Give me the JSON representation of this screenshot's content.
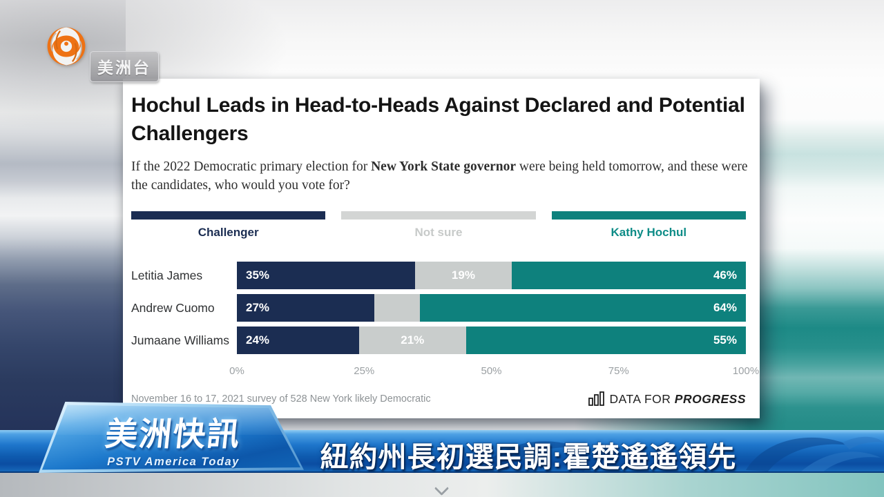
{
  "branding": {
    "channel_badge": "美洲台",
    "program_badge_title": "美洲快訊",
    "program_badge_subtitle": "PSTV America Today"
  },
  "headline": "紐約州長初選民調:霍楚遙遙領先",
  "chart_card": {
    "title": "Hochul Leads in Head-to-Heads Against Declared and Potential Challengers",
    "subtitle_prefix": "If the 2022 Democratic primary election for ",
    "subtitle_bold": "New York State governor",
    "subtitle_suffix": " were being held tomorrow, and these were the candidates, who would you vote for?",
    "footnote": "November 16 to 17, 2021 survey of 528 New York likely Democratic",
    "logo_regular": "DATA FOR",
    "logo_bold": "PROGRESS"
  },
  "chart_data": {
    "type": "bar",
    "stacked": true,
    "orientation": "horizontal",
    "title": "Hochul Leads in Head-to-Heads Against Declared and Potential Challengers",
    "xlabel": "",
    "ylabel": "",
    "xlim": [
      0,
      100
    ],
    "x_ticks": [
      "0%",
      "25%",
      "50%",
      "75%",
      "100%"
    ],
    "grid": false,
    "legend_position": "top",
    "legend": [
      {
        "label": "Challenger",
        "color": "#1b2d52"
      },
      {
        "label": "Not sure",
        "color": "#c9cdcc"
      },
      {
        "label": "Kathy Hochul",
        "color": "#0e817d"
      }
    ],
    "categories": [
      "Letitia James",
      "Andrew Cuomo",
      "Jumaane Williams"
    ],
    "series": [
      {
        "name": "Challenger",
        "values": [
          35,
          27,
          24
        ]
      },
      {
        "name": "Not sure",
        "values": [
          19,
          9,
          21
        ]
      },
      {
        "name": "Kathy Hochul",
        "values": [
          46,
          64,
          55
        ]
      }
    ],
    "bar_labels": {
      "challenger": [
        "35%",
        "27%",
        "24%"
      ],
      "not_sure": [
        "19%",
        "",
        "21%"
      ],
      "hochul": [
        "46%",
        "64%",
        "55%"
      ]
    }
  },
  "colors": {
    "challenger_navy": "#1b2d52",
    "not_sure_gray": "#c9cdcc",
    "hochul_teal": "#0e817d",
    "band_blue": "#1264b4",
    "phoenix_orange": "#ee7214",
    "background_teal": "#1d8a86"
  }
}
